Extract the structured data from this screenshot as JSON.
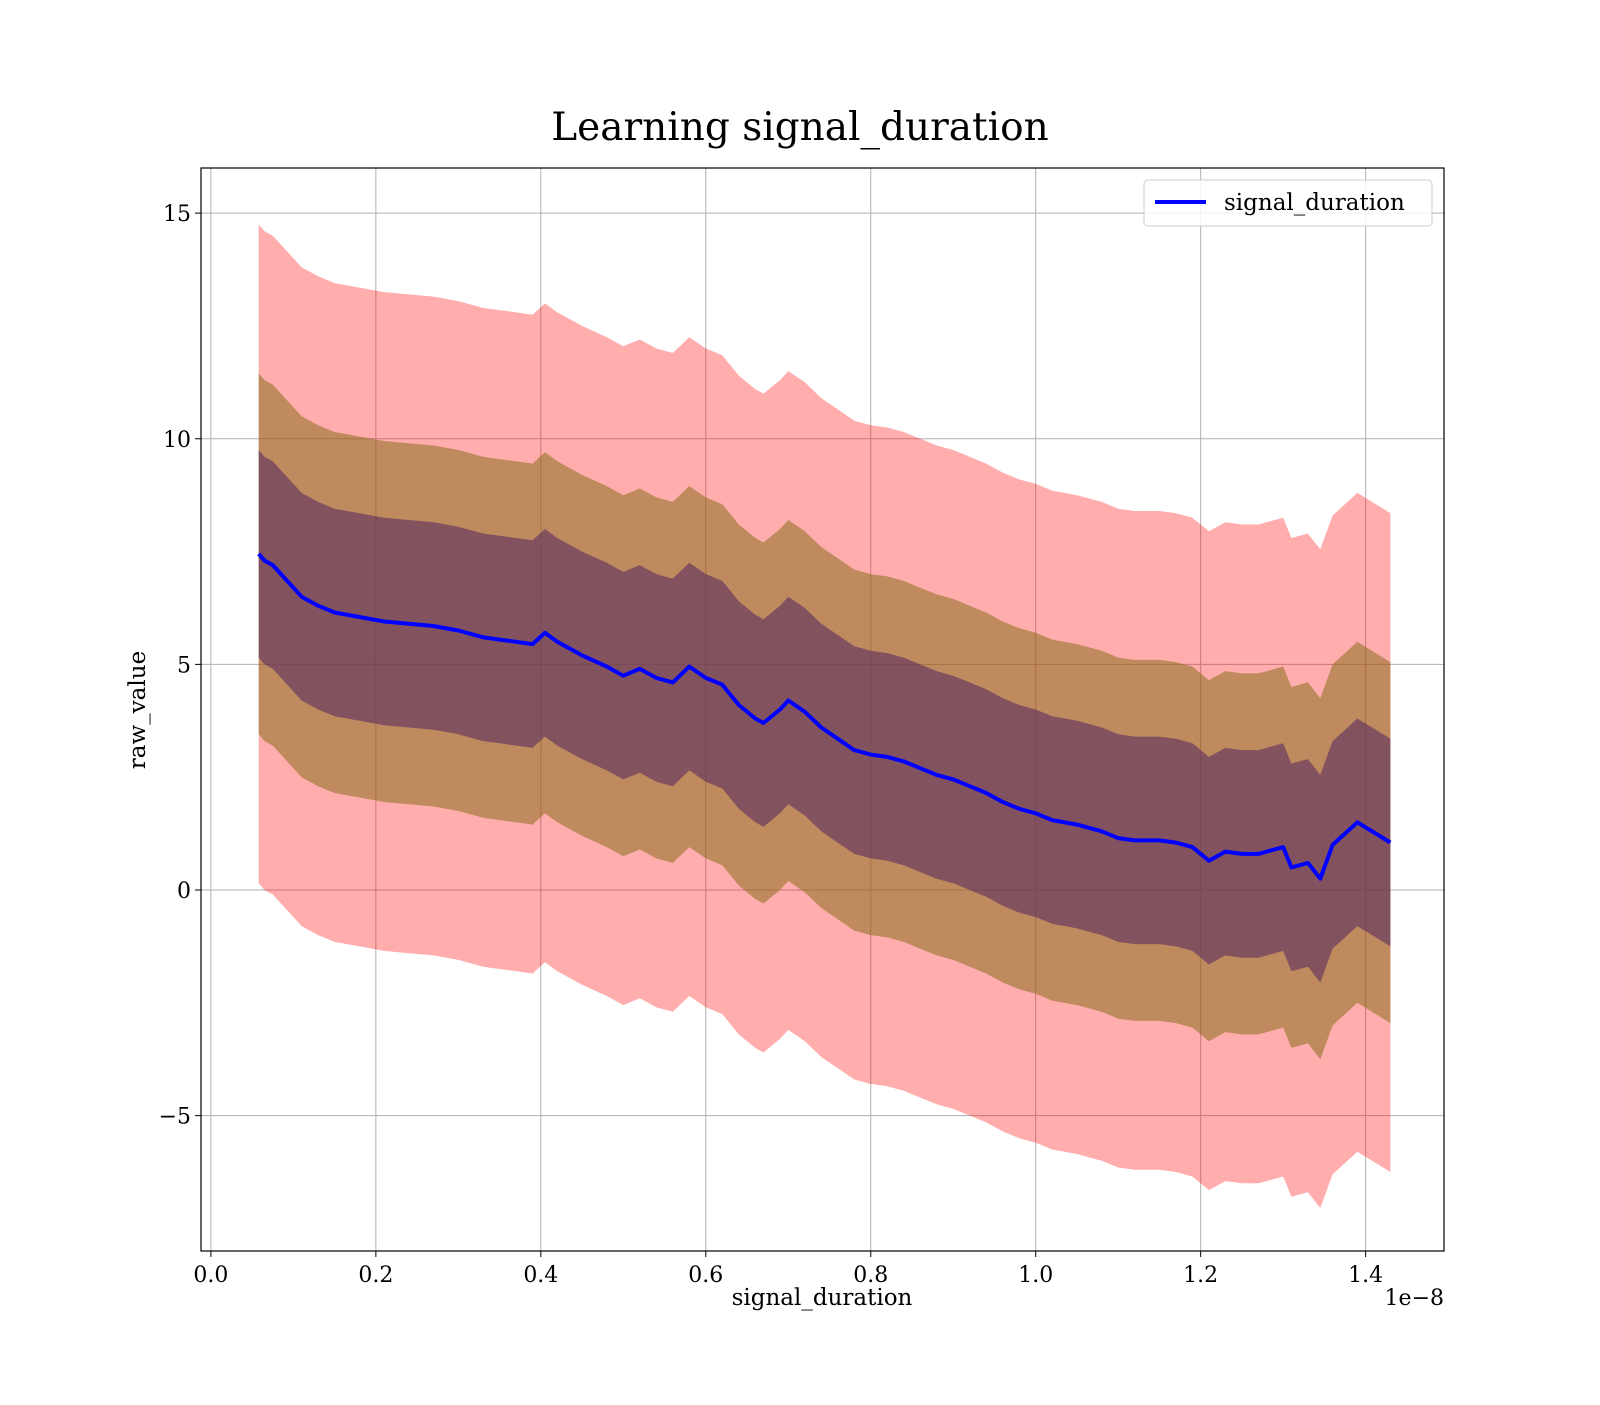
{
  "chart_data": {
    "type": "line",
    "title": "Learning signal_duration",
    "xlabel": "signal_duration",
    "ylabel": "raw_value",
    "x_offset_label": "1e−8",
    "xlim": [
      -0.012,
      1.495
    ],
    "ylim": [
      -8.0,
      16.0
    ],
    "xticks": [
      0.0,
      0.2,
      0.4,
      0.6,
      0.8,
      1.0,
      1.2,
      1.4
    ],
    "xtick_labels": [
      "0.0",
      "0.2",
      "0.4",
      "0.6",
      "0.8",
      "1.0",
      "1.2",
      "1.4"
    ],
    "yticks": [
      15,
      10,
      5,
      0,
      -5
    ],
    "ytick_labels": [
      "15",
      "10",
      "5",
      "0",
      "−5"
    ],
    "grid": true,
    "legend": {
      "position": "top-right",
      "entries": [
        "signal_duration"
      ]
    },
    "colors": {
      "line": "#0000ff",
      "band_outer": "#ff0000",
      "band_middle": "#8b6d1c",
      "band_inner": "#5a2d61",
      "grid": "#b0b0b0"
    },
    "series": [
      {
        "name": "signal_duration",
        "x": [
          0.058,
          0.065,
          0.075,
          0.09,
          0.11,
          0.13,
          0.15,
          0.18,
          0.21,
          0.24,
          0.27,
          0.3,
          0.33,
          0.35,
          0.37,
          0.39,
          0.405,
          0.42,
          0.45,
          0.48,
          0.5,
          0.52,
          0.54,
          0.56,
          0.58,
          0.6,
          0.62,
          0.64,
          0.66,
          0.67,
          0.69,
          0.7,
          0.72,
          0.74,
          0.76,
          0.78,
          0.8,
          0.82,
          0.84,
          0.86,
          0.88,
          0.9,
          0.92,
          0.94,
          0.96,
          0.98,
          1.0,
          1.02,
          1.05,
          1.08,
          1.1,
          1.12,
          1.15,
          1.17,
          1.19,
          1.21,
          1.23,
          1.25,
          1.27,
          1.3,
          1.31,
          1.33,
          1.345,
          1.36,
          1.39,
          1.43
        ],
        "mean": [
          7.45,
          7.3,
          7.2,
          6.9,
          6.5,
          6.3,
          6.15,
          6.05,
          5.95,
          5.9,
          5.85,
          5.75,
          5.6,
          5.55,
          5.5,
          5.45,
          5.7,
          5.5,
          5.2,
          4.95,
          4.75,
          4.9,
          4.7,
          4.6,
          4.95,
          4.7,
          4.55,
          4.1,
          3.8,
          3.7,
          4.0,
          4.2,
          3.95,
          3.6,
          3.35,
          3.1,
          3.0,
          2.95,
          2.85,
          2.7,
          2.55,
          2.45,
          2.3,
          2.15,
          1.95,
          1.8,
          1.7,
          1.55,
          1.45,
          1.3,
          1.15,
          1.1,
          1.1,
          1.05,
          0.95,
          0.65,
          0.85,
          0.8,
          0.8,
          0.95,
          0.5,
          0.6,
          0.25,
          1.0,
          1.5,
          1.05
        ],
        "band_half_widths": [
          2.3,
          4.0,
          7.3
        ],
        "band_labels": [
          "inner",
          "middle",
          "outer"
        ]
      }
    ]
  }
}
